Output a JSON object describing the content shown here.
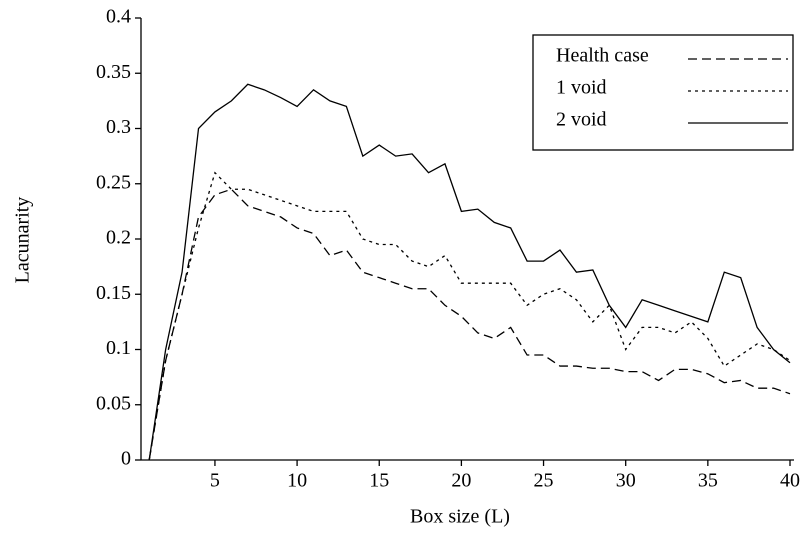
{
  "chart_data": {
    "type": "line",
    "x_label": "Box size (L)",
    "y_label": "Lacunarity",
    "x": [
      1,
      2,
      3,
      4,
      5,
      6,
      7,
      8,
      9,
      10,
      11,
      12,
      13,
      14,
      15,
      16,
      17,
      18,
      19,
      20,
      21,
      22,
      23,
      24,
      25,
      26,
      27,
      28,
      29,
      30,
      31,
      32,
      33,
      34,
      35,
      36,
      37,
      38,
      39,
      40
    ],
    "series": [
      {
        "name": "Health case",
        "color": "#000000",
        "dash": "9,5",
        "values": [
          0,
          0.09,
          0.15,
          0.22,
          0.24,
          0.245,
          0.23,
          0.225,
          0.22,
          0.21,
          0.205,
          0.185,
          0.19,
          0.17,
          0.165,
          0.16,
          0.155,
          0.155,
          0.14,
          0.13,
          0.115,
          0.11,
          0.12,
          0.095,
          0.095,
          0.085,
          0.085,
          0.083,
          0.083,
          0.08,
          0.08,
          0.072,
          0.082,
          0.082,
          0.078,
          0.07,
          0.072,
          0.065,
          0.065,
          0.06
        ]
      },
      {
        "name": "1 void",
        "color": "#000000",
        "dash": "3,4",
        "values": [
          0,
          0.09,
          0.15,
          0.21,
          0.26,
          0.245,
          0.245,
          0.24,
          0.235,
          0.23,
          0.225,
          0.225,
          0.225,
          0.2,
          0.195,
          0.195,
          0.18,
          0.175,
          0.185,
          0.16,
          0.16,
          0.16,
          0.16,
          0.14,
          0.15,
          0.155,
          0.145,
          0.125,
          0.14,
          0.1,
          0.12,
          0.12,
          0.115,
          0.125,
          0.11,
          0.085,
          0.095,
          0.105,
          0.1,
          0.09
        ]
      },
      {
        "name": "2 void",
        "color": "#000000",
        "dash": "none",
        "values": [
          0,
          0.1,
          0.17,
          0.3,
          0.315,
          0.325,
          0.34,
          0.335,
          0.328,
          0.32,
          0.335,
          0.325,
          0.32,
          0.275,
          0.285,
          0.275,
          0.277,
          0.26,
          0.268,
          0.225,
          0.227,
          0.215,
          0.21,
          0.18,
          0.18,
          0.19,
          0.17,
          0.172,
          0.14,
          0.12,
          0.145,
          0.14,
          0.135,
          0.13,
          0.125,
          0.17,
          0.165,
          0.12,
          0.1,
          0.088
        ]
      }
    ],
    "xlim": [
      0.5,
      40
    ],
    "xticks": [
      5,
      10,
      15,
      20,
      25,
      30,
      35,
      40
    ],
    "ylim": [
      0,
      0.4
    ],
    "yticks": [
      0,
      0.05,
      0.1,
      0.15,
      0.2,
      0.25,
      0.3,
      0.35,
      0.4
    ],
    "legend": "upper right"
  }
}
